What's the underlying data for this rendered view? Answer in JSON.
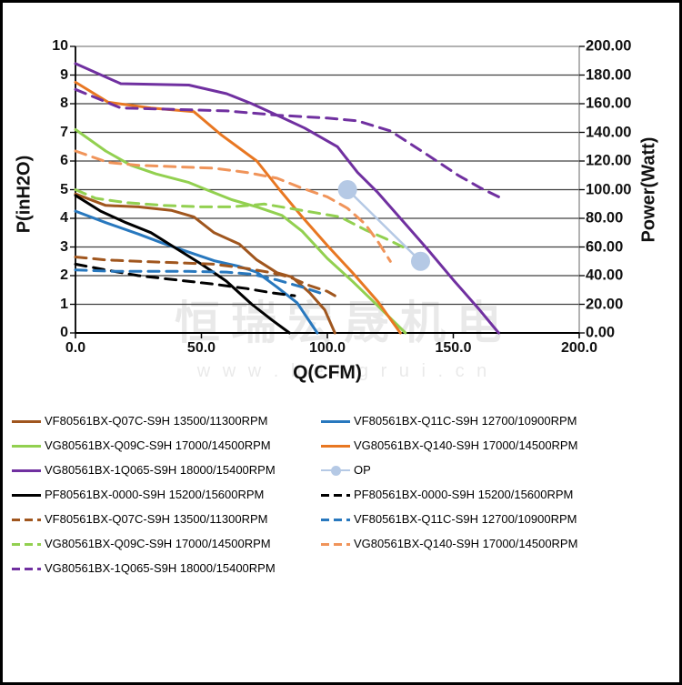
{
  "watermark": {
    "line1": "恒瑞宏晟机电",
    "line2": "w w w . h e n g r u i . c n"
  },
  "colors": {
    "brown": "#A0561E",
    "blue": "#2878BE",
    "green": "#92D050",
    "orange": "#E87722",
    "orange_dash": "#F0945A",
    "purple": "#7030A0",
    "black": "#000000",
    "op": "#B5C9E5",
    "grid": "#404040",
    "plot_border": "#7F7F7F",
    "axis": "#000000"
  },
  "chart_data": {
    "type": "line",
    "xlabel": "Q(CFM)",
    "ylabel_left": "P(inH2O)",
    "ylabel_right": "Power(Watt)",
    "xlim": [
      0,
      200
    ],
    "ylim_left": [
      0,
      10
    ],
    "ylim_right": [
      0,
      200
    ],
    "grid": "horizontal",
    "legend_position": "bottom",
    "x_ticks": [
      {
        "v": 0,
        "label": "0.0"
      },
      {
        "v": 50,
        "label": "50.0"
      },
      {
        "v": 100,
        "label": "100.0"
      },
      {
        "v": 150,
        "label": "150.0"
      },
      {
        "v": 200,
        "label": "200.0"
      }
    ],
    "y_ticks_left": [
      {
        "v": 0,
        "label": "0"
      },
      {
        "v": 1,
        "label": "1"
      },
      {
        "v": 2,
        "label": "2"
      },
      {
        "v": 3,
        "label": "3"
      },
      {
        "v": 4,
        "label": "4"
      },
      {
        "v": 5,
        "label": "5"
      },
      {
        "v": 6,
        "label": "6"
      },
      {
        "v": 7,
        "label": "7"
      },
      {
        "v": 8,
        "label": "8"
      },
      {
        "v": 9,
        "label": "9"
      },
      {
        "v": 10,
        "label": "10"
      }
    ],
    "y_ticks_right": [
      {
        "v": 0,
        "label": "0.00"
      },
      {
        "v": 20,
        "label": "20.00"
      },
      {
        "v": 40,
        "label": "40.00"
      },
      {
        "v": 60,
        "label": "60.00"
      },
      {
        "v": 80,
        "label": "80.00"
      },
      {
        "v": 100,
        "label": "100.00"
      },
      {
        "v": 120,
        "label": "120.00"
      },
      {
        "v": 140,
        "label": "140.00"
      },
      {
        "v": 160,
        "label": "160.00"
      },
      {
        "v": 180,
        "label": "180.00"
      },
      {
        "v": 200,
        "label": "200.00"
      }
    ],
    "series": [
      {
        "key": "pq-vf-q07c",
        "name": "VF80561BX-Q07C-S9H 13500/11300RPM",
        "color": "brown",
        "dash": false,
        "axis": "left",
        "points": [
          [
            0,
            4.85
          ],
          [
            12,
            4.45
          ],
          [
            25,
            4.4
          ],
          [
            38,
            4.28
          ],
          [
            47,
            4.05
          ],
          [
            55,
            3.5
          ],
          [
            65,
            3.1
          ],
          [
            72,
            2.55
          ],
          [
            80,
            2.1
          ],
          [
            86,
            1.95
          ],
          [
            93,
            1.4
          ],
          [
            99,
            0.8
          ],
          [
            103,
            0
          ]
        ]
      },
      {
        "key": "pq-vf-q11c",
        "name": "VF80561BX-Q11C-S9H 12700/10900RPM",
        "color": "blue",
        "dash": false,
        "axis": "left",
        "points": [
          [
            0,
            4.25
          ],
          [
            12,
            3.85
          ],
          [
            25,
            3.45
          ],
          [
            35,
            3.12
          ],
          [
            45,
            2.82
          ],
          [
            55,
            2.52
          ],
          [
            65,
            2.32
          ],
          [
            72,
            2.12
          ],
          [
            80,
            1.6
          ],
          [
            88,
            1.05
          ],
          [
            96,
            0
          ]
        ]
      },
      {
        "key": "pq-vg-q09c",
        "name": "VG80561BX-Q09C-S9H 17000/14500RPM",
        "color": "green",
        "dash": false,
        "axis": "left",
        "points": [
          [
            0,
            7.1
          ],
          [
            12,
            6.35
          ],
          [
            22,
            5.85
          ],
          [
            32,
            5.55
          ],
          [
            45,
            5.25
          ],
          [
            52,
            5.0
          ],
          [
            62,
            4.65
          ],
          [
            72,
            4.4
          ],
          [
            82,
            4.1
          ],
          [
            90,
            3.55
          ],
          [
            100,
            2.6
          ],
          [
            110,
            1.8
          ],
          [
            120,
            0.95
          ],
          [
            131,
            0
          ]
        ]
      },
      {
        "key": "pq-vg-q140",
        "name": "VG80561BX-Q140-S9H 17000/14500RPM",
        "color": "orange",
        "dash": false,
        "axis": "left",
        "points": [
          [
            0,
            8.75
          ],
          [
            13,
            8.05
          ],
          [
            30,
            7.85
          ],
          [
            47,
            7.72
          ],
          [
            58,
            6.9
          ],
          [
            72,
            6.0
          ],
          [
            81,
            5.0
          ],
          [
            90,
            4.05
          ],
          [
            100,
            3.05
          ],
          [
            110,
            2.1
          ],
          [
            120,
            1.1
          ],
          [
            129,
            0
          ]
        ]
      },
      {
        "key": "pq-vg-1q065",
        "name": "VG80561BX-1Q065-S9H 18000/15400RPM",
        "color": "purple",
        "dash": false,
        "axis": "left",
        "points": [
          [
            0,
            9.4
          ],
          [
            18,
            8.7
          ],
          [
            45,
            8.65
          ],
          [
            60,
            8.35
          ],
          [
            70,
            8.0
          ],
          [
            80,
            7.6
          ],
          [
            91,
            7.15
          ],
          [
            104,
            6.5
          ],
          [
            112,
            5.6
          ],
          [
            120,
            4.9
          ],
          [
            130,
            3.9
          ],
          [
            140,
            2.9
          ],
          [
            150,
            1.85
          ],
          [
            160,
            0.85
          ],
          [
            168,
            0
          ]
        ]
      },
      {
        "key": "pq-pf-0000",
        "name": "PF80561BX-0000-S9H 15200/15600RPM",
        "color": "black",
        "dash": false,
        "axis": "left",
        "points": [
          [
            0,
            4.8
          ],
          [
            10,
            4.25
          ],
          [
            20,
            3.85
          ],
          [
            30,
            3.5
          ],
          [
            40,
            2.95
          ],
          [
            50,
            2.4
          ],
          [
            60,
            1.8
          ],
          [
            70,
            1.0
          ],
          [
            78,
            0.45
          ],
          [
            85,
            0
          ]
        ]
      },
      {
        "key": "pw-pf-0000",
        "name": "PF80561BX-0000-S9H 15200/15600RPM",
        "color": "black",
        "dash": true,
        "axis": "right",
        "points": [
          [
            0,
            48
          ],
          [
            12,
            44
          ],
          [
            25,
            40
          ],
          [
            40,
            37
          ],
          [
            55,
            34
          ],
          [
            68,
            31
          ],
          [
            78,
            28
          ],
          [
            87,
            26
          ]
        ]
      },
      {
        "key": "pw-vf-q07c",
        "name": "VF80561BX-Q07C-S9H 13500/11300RPM",
        "color": "brown",
        "dash": true,
        "axis": "right",
        "points": [
          [
            0,
            53
          ],
          [
            12,
            51
          ],
          [
            25,
            50
          ],
          [
            40,
            49
          ],
          [
            55,
            48
          ],
          [
            68,
            45
          ],
          [
            78,
            42
          ],
          [
            85,
            39
          ],
          [
            93,
            33
          ],
          [
            100,
            29
          ],
          [
            103,
            26
          ]
        ]
      },
      {
        "key": "pw-vf-q11c",
        "name": "VF80561BX-Q11C-S9H 12700/10900RPM",
        "color": "blue",
        "dash": true,
        "axis": "right",
        "points": [
          [
            0,
            44
          ],
          [
            15,
            43
          ],
          [
            30,
            43
          ],
          [
            45,
            43
          ],
          [
            60,
            42.5
          ],
          [
            70,
            41
          ],
          [
            80,
            37
          ],
          [
            90,
            32
          ],
          [
            97,
            28
          ]
        ]
      },
      {
        "key": "pw-vg-q09c",
        "name": "VG80561BX-Q09C-S9H 17000/14500RPM",
        "color": "green",
        "dash": true,
        "axis": "right",
        "points": [
          [
            0,
            100
          ],
          [
            8,
            94
          ],
          [
            20,
            91
          ],
          [
            35,
            89
          ],
          [
            50,
            88
          ],
          [
            62,
            88
          ],
          [
            75,
            90
          ],
          [
            85,
            87
          ],
          [
            95,
            84
          ],
          [
            105,
            81
          ],
          [
            115,
            72
          ],
          [
            123,
            66
          ],
          [
            130,
            60
          ]
        ]
      },
      {
        "key": "pw-vg-q140",
        "name": "VG80561BX-Q140-S9H 17000/14500RPM",
        "color": "orange_dash",
        "dash": true,
        "axis": "right",
        "points": [
          [
            0,
            127
          ],
          [
            13,
            119
          ],
          [
            25,
            117
          ],
          [
            40,
            116
          ],
          [
            55,
            115
          ],
          [
            68,
            112
          ],
          [
            80,
            108
          ],
          [
            90,
            101
          ],
          [
            100,
            95
          ],
          [
            108,
            87
          ],
          [
            115,
            76
          ],
          [
            120,
            64
          ],
          [
            125,
            50
          ]
        ]
      },
      {
        "key": "pw-vg-1q065",
        "name": "VG80561BX-1Q065-S9H 18000/15400RPM",
        "color": "purple",
        "dash": true,
        "axis": "right",
        "points": [
          [
            0,
            170
          ],
          [
            18,
            157
          ],
          [
            40,
            156
          ],
          [
            60,
            155
          ],
          [
            80,
            152
          ],
          [
            100,
            150
          ],
          [
            112,
            148
          ],
          [
            125,
            141
          ],
          [
            140,
            124
          ],
          [
            152,
            110
          ],
          [
            161,
            101
          ],
          [
            168,
            95
          ]
        ]
      }
    ],
    "op_series": {
      "key": "op",
      "name": "OP",
      "color": "op",
      "axis": "right",
      "points": [
        [
          108,
          100
        ],
        [
          137,
          50
        ]
      ]
    }
  },
  "legend": {
    "rows": [
      [
        {
          "label": "VF80561BX-Q07C-S9H 13500/11300RPM",
          "color": "brown",
          "style": "solid"
        },
        {
          "label": "VF80561BX-Q11C-S9H 12700/10900RPM",
          "color": "blue",
          "style": "solid"
        }
      ],
      [
        {
          "label": "VG80561BX-Q09C-S9H 17000/14500RPM",
          "color": "green",
          "style": "solid"
        },
        {
          "label": "VG80561BX-Q140-S9H 17000/14500RPM",
          "color": "orange",
          "style": "solid"
        }
      ],
      [
        {
          "label": "VG80561BX-1Q065-S9H 18000/15400RPM",
          "color": "purple",
          "style": "solid"
        },
        {
          "label": "OP",
          "color": "op",
          "style": "op"
        }
      ],
      [
        {
          "label": "PF80561BX-0000-S9H 15200/15600RPM",
          "color": "black",
          "style": "solid"
        },
        {
          "label": "PF80561BX-0000-S9H 15200/15600RPM",
          "color": "black",
          "style": "dashed"
        }
      ],
      [
        {
          "label": "VF80561BX-Q07C-S9H 13500/11300RPM",
          "color": "brown",
          "style": "dashed"
        },
        {
          "label": "VF80561BX-Q11C-S9H 12700/10900RPM",
          "color": "blue",
          "style": "dashed"
        }
      ],
      [
        {
          "label": "VG80561BX-Q09C-S9H 17000/14500RPM",
          "color": "green",
          "style": "dashed"
        },
        {
          "label": "VG80561BX-Q140-S9H 17000/14500RPM",
          "color": "orange_dash",
          "style": "dashed"
        }
      ],
      [
        {
          "label": "VG80561BX-1Q065-S9H 18000/15400RPM",
          "color": "purple",
          "style": "dashed"
        }
      ]
    ]
  }
}
